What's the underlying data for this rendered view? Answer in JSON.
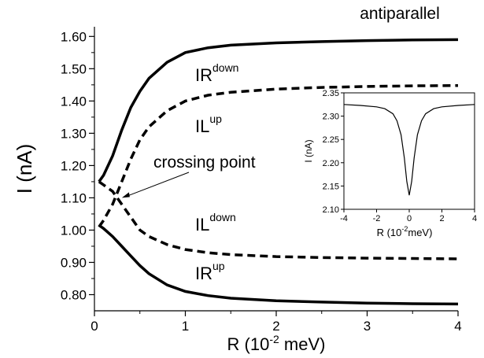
{
  "chart_data": [
    {
      "type": "line",
      "title": "antiparallel",
      "xlabel_main": "R (10",
      "xlabel_exp": "-2",
      "xlabel_unit": " meV)",
      "ylabel": "I (nA)",
      "xlim": [
        0,
        4
      ],
      "ylim": [
        0.75,
        1.63
      ],
      "xticks": [
        0,
        1,
        2,
        3,
        4
      ],
      "xtick_labels": [
        "0",
        "1",
        "2",
        "3",
        "4"
      ],
      "yticks": [
        0.8,
        0.9,
        1.0,
        1.1,
        1.2,
        1.3,
        1.4,
        1.5,
        1.6
      ],
      "ytick_labels": [
        "0.80",
        "0.90",
        "1.00",
        "1.10",
        "1.20",
        "1.30",
        "1.40",
        "1.50",
        "1.60"
      ],
      "series": [
        {
          "name": "IR",
          "sup": "down",
          "style": "solid",
          "x": [
            0.05,
            0.1,
            0.2,
            0.3,
            0.4,
            0.5,
            0.6,
            0.8,
            1.0,
            1.25,
            1.5,
            2.0,
            2.5,
            3.0,
            3.5,
            4.0
          ],
          "y": [
            1.15,
            1.17,
            1.23,
            1.31,
            1.38,
            1.43,
            1.47,
            1.52,
            1.55,
            1.565,
            1.573,
            1.58,
            1.584,
            1.587,
            1.589,
            1.59
          ]
        },
        {
          "name": "IL",
          "sup": "up",
          "style": "dashed",
          "x": [
            0.05,
            0.1,
            0.2,
            0.3,
            0.4,
            0.5,
            0.6,
            0.8,
            1.0,
            1.25,
            1.5,
            2.0,
            2.5,
            3.0,
            3.5,
            4.0
          ],
          "y": [
            1.01,
            1.03,
            1.08,
            1.15,
            1.22,
            1.28,
            1.32,
            1.37,
            1.4,
            1.418,
            1.427,
            1.437,
            1.442,
            1.445,
            1.447,
            1.448
          ]
        },
        {
          "name": "IL",
          "sup": "down",
          "style": "dashed",
          "x": [
            0.05,
            0.1,
            0.2,
            0.3,
            0.4,
            0.5,
            0.6,
            0.8,
            1.0,
            1.25,
            1.5,
            2.0,
            2.5,
            3.0,
            3.5,
            4.0
          ],
          "y": [
            1.15,
            1.14,
            1.12,
            1.08,
            1.04,
            1.0,
            0.98,
            0.955,
            0.94,
            0.93,
            0.924,
            0.918,
            0.915,
            0.913,
            0.912,
            0.911
          ]
        },
        {
          "name": "IR",
          "sup": "up",
          "style": "solid",
          "x": [
            0.05,
            0.1,
            0.2,
            0.3,
            0.4,
            0.5,
            0.6,
            0.8,
            1.0,
            1.25,
            1.5,
            2.0,
            2.5,
            3.0,
            3.5,
            4.0
          ],
          "y": [
            1.015,
            1.005,
            0.98,
            0.95,
            0.92,
            0.89,
            0.865,
            0.83,
            0.81,
            0.797,
            0.789,
            0.781,
            0.777,
            0.774,
            0.772,
            0.771
          ]
        }
      ],
      "annotation": "crossing point",
      "annotation_point": [
        0.25,
        1.1
      ]
    },
    {
      "type": "line",
      "xlabel_main": "R (10",
      "xlabel_exp": "-2",
      "xlabel_unit": "meV)",
      "ylabel": "I (nA)",
      "xlim": [
        -4,
        4
      ],
      "ylim": [
        2.1,
        2.35
      ],
      "xticks": [
        -4,
        -2,
        0,
        2,
        4
      ],
      "xtick_labels": [
        "-4",
        "-2",
        "0",
        "2",
        "4"
      ],
      "yticks": [
        2.1,
        2.15,
        2.2,
        2.25,
        2.3,
        2.35
      ],
      "ytick_labels": [
        "2.10",
        "2.15",
        "2.20",
        "2.25",
        "2.30",
        "2.35"
      ],
      "series": [
        {
          "style": "solid",
          "x": [
            -4,
            -3,
            -2,
            -1.5,
            -1,
            -0.75,
            -0.5,
            -0.3,
            -0.15,
            0,
            0.15,
            0.3,
            0.5,
            0.75,
            1,
            1.5,
            2,
            3,
            4
          ],
          "y": [
            2.325,
            2.323,
            2.32,
            2.316,
            2.305,
            2.29,
            2.26,
            2.21,
            2.16,
            2.13,
            2.16,
            2.21,
            2.26,
            2.29,
            2.305,
            2.316,
            2.32,
            2.323,
            2.325
          ]
        }
      ]
    }
  ]
}
